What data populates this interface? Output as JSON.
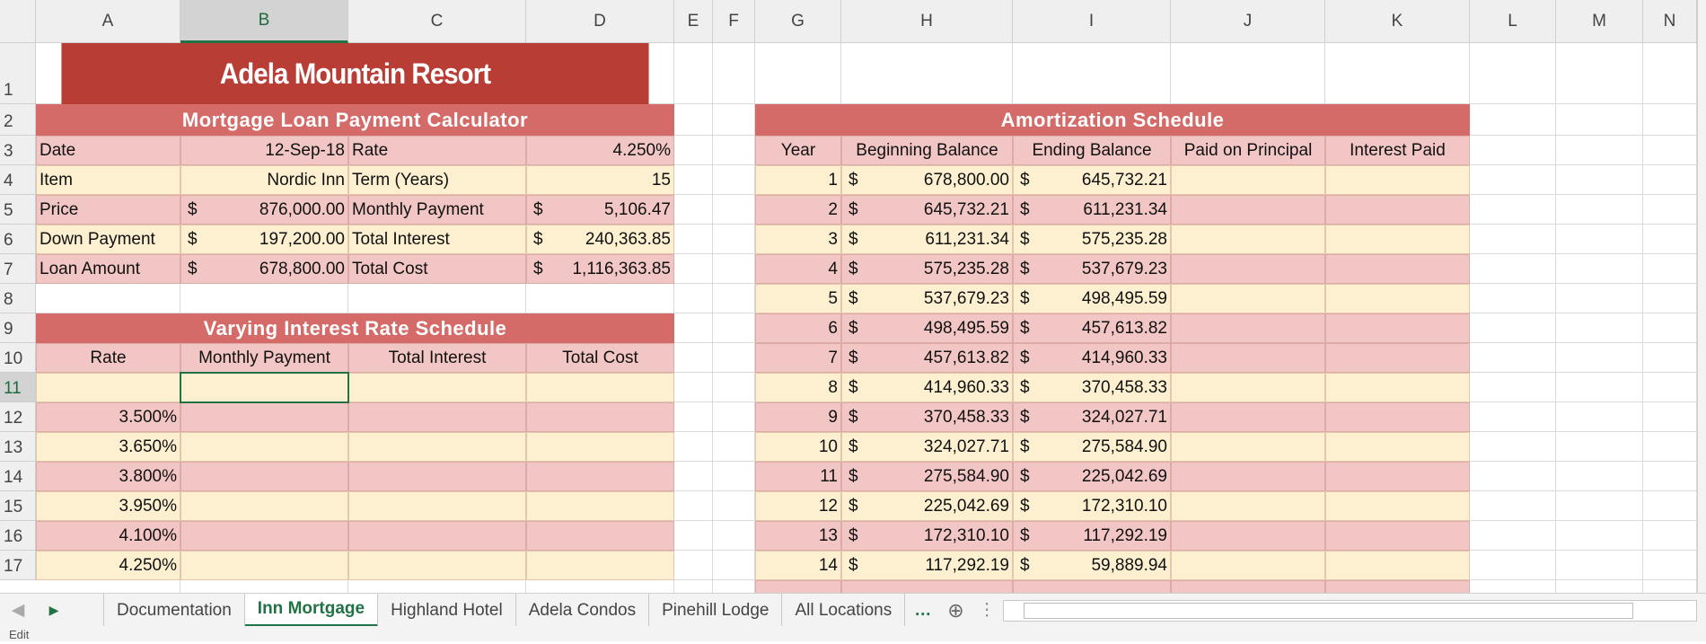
{
  "columns": [
    "A",
    "B",
    "C",
    "D",
    "E",
    "F",
    "G",
    "H",
    "I",
    "J",
    "K",
    "L",
    "M",
    "N"
  ],
  "rows": [
    "1",
    "2",
    "3",
    "4",
    "5",
    "6",
    "7",
    "8",
    "9",
    "10",
    "11",
    "12",
    "13",
    "14",
    "15",
    "16",
    "17"
  ],
  "title": "Adela Mountain Resort",
  "calculator": {
    "title": "Mortgage Loan Payment Calculator",
    "rows": [
      [
        {
          "label": "Date",
          "value": "12-Sep-18"
        },
        {
          "label": "Rate",
          "value": "4.250%"
        }
      ],
      [
        {
          "label": "Item",
          "value": "Nordic Inn"
        },
        {
          "label": "Term (Years)",
          "value": "15"
        }
      ],
      [
        {
          "label": "Price",
          "currency": "$",
          "value": "876,000.00"
        },
        {
          "label": "Monthly Payment",
          "currency": "$",
          "value": "5,106.47"
        }
      ],
      [
        {
          "label": "Down Payment",
          "currency": "$",
          "value": "197,200.00"
        },
        {
          "label": "Total Interest",
          "currency": "$",
          "value": "240,363.85"
        }
      ],
      [
        {
          "label": "Loan Amount",
          "currency": "$",
          "value": "678,800.00"
        },
        {
          "label": "Total Cost",
          "currency": "$",
          "value": "1,116,363.85"
        }
      ]
    ]
  },
  "varying": {
    "title": "Varying Interest Rate Schedule",
    "headers": [
      "Rate",
      "Monthly Payment",
      "Total Interest",
      "Total Cost"
    ],
    "rates": [
      "3.500%",
      "3.650%",
      "3.800%",
      "3.950%",
      "4.100%",
      "4.250%"
    ]
  },
  "amortization": {
    "title": "Amortization Schedule",
    "currency": "$",
    "headers": [
      "Year",
      "Beginning Balance",
      "Ending Balance",
      "Paid on Principal",
      "Interest Paid"
    ],
    "rows": [
      {
        "year": "1",
        "begin": "678,800.00",
        "end": "645,732.21"
      },
      {
        "year": "2",
        "begin": "645,732.21",
        "end": "611,231.34"
      },
      {
        "year": "3",
        "begin": "611,231.34",
        "end": "575,235.28"
      },
      {
        "year": "4",
        "begin": "575,235.28",
        "end": "537,679.23"
      },
      {
        "year": "5",
        "begin": "537,679.23",
        "end": "498,495.59"
      },
      {
        "year": "6",
        "begin": "498,495.59",
        "end": "457,613.82"
      },
      {
        "year": "7",
        "begin": "457,613.82",
        "end": "414,960.33"
      },
      {
        "year": "8",
        "begin": "414,960.33",
        "end": "370,458.33"
      },
      {
        "year": "9",
        "begin": "370,458.33",
        "end": "324,027.71"
      },
      {
        "year": "10",
        "begin": "324,027.71",
        "end": "275,584.90"
      },
      {
        "year": "11",
        "begin": "275,584.90",
        "end": "225,042.69"
      },
      {
        "year": "12",
        "begin": "225,042.69",
        "end": "172,310.10"
      },
      {
        "year": "13",
        "begin": "172,310.10",
        "end": "117,292.19"
      },
      {
        "year": "14",
        "begin": "117,292.19",
        "end": "59,889.94"
      }
    ]
  },
  "tabs": {
    "items": [
      "Documentation",
      "Inn Mortgage",
      "Highland Hotel",
      "Adela Condos",
      "Pinehill Lodge",
      "All Locations"
    ],
    "active": 1
  },
  "status": "Edit"
}
